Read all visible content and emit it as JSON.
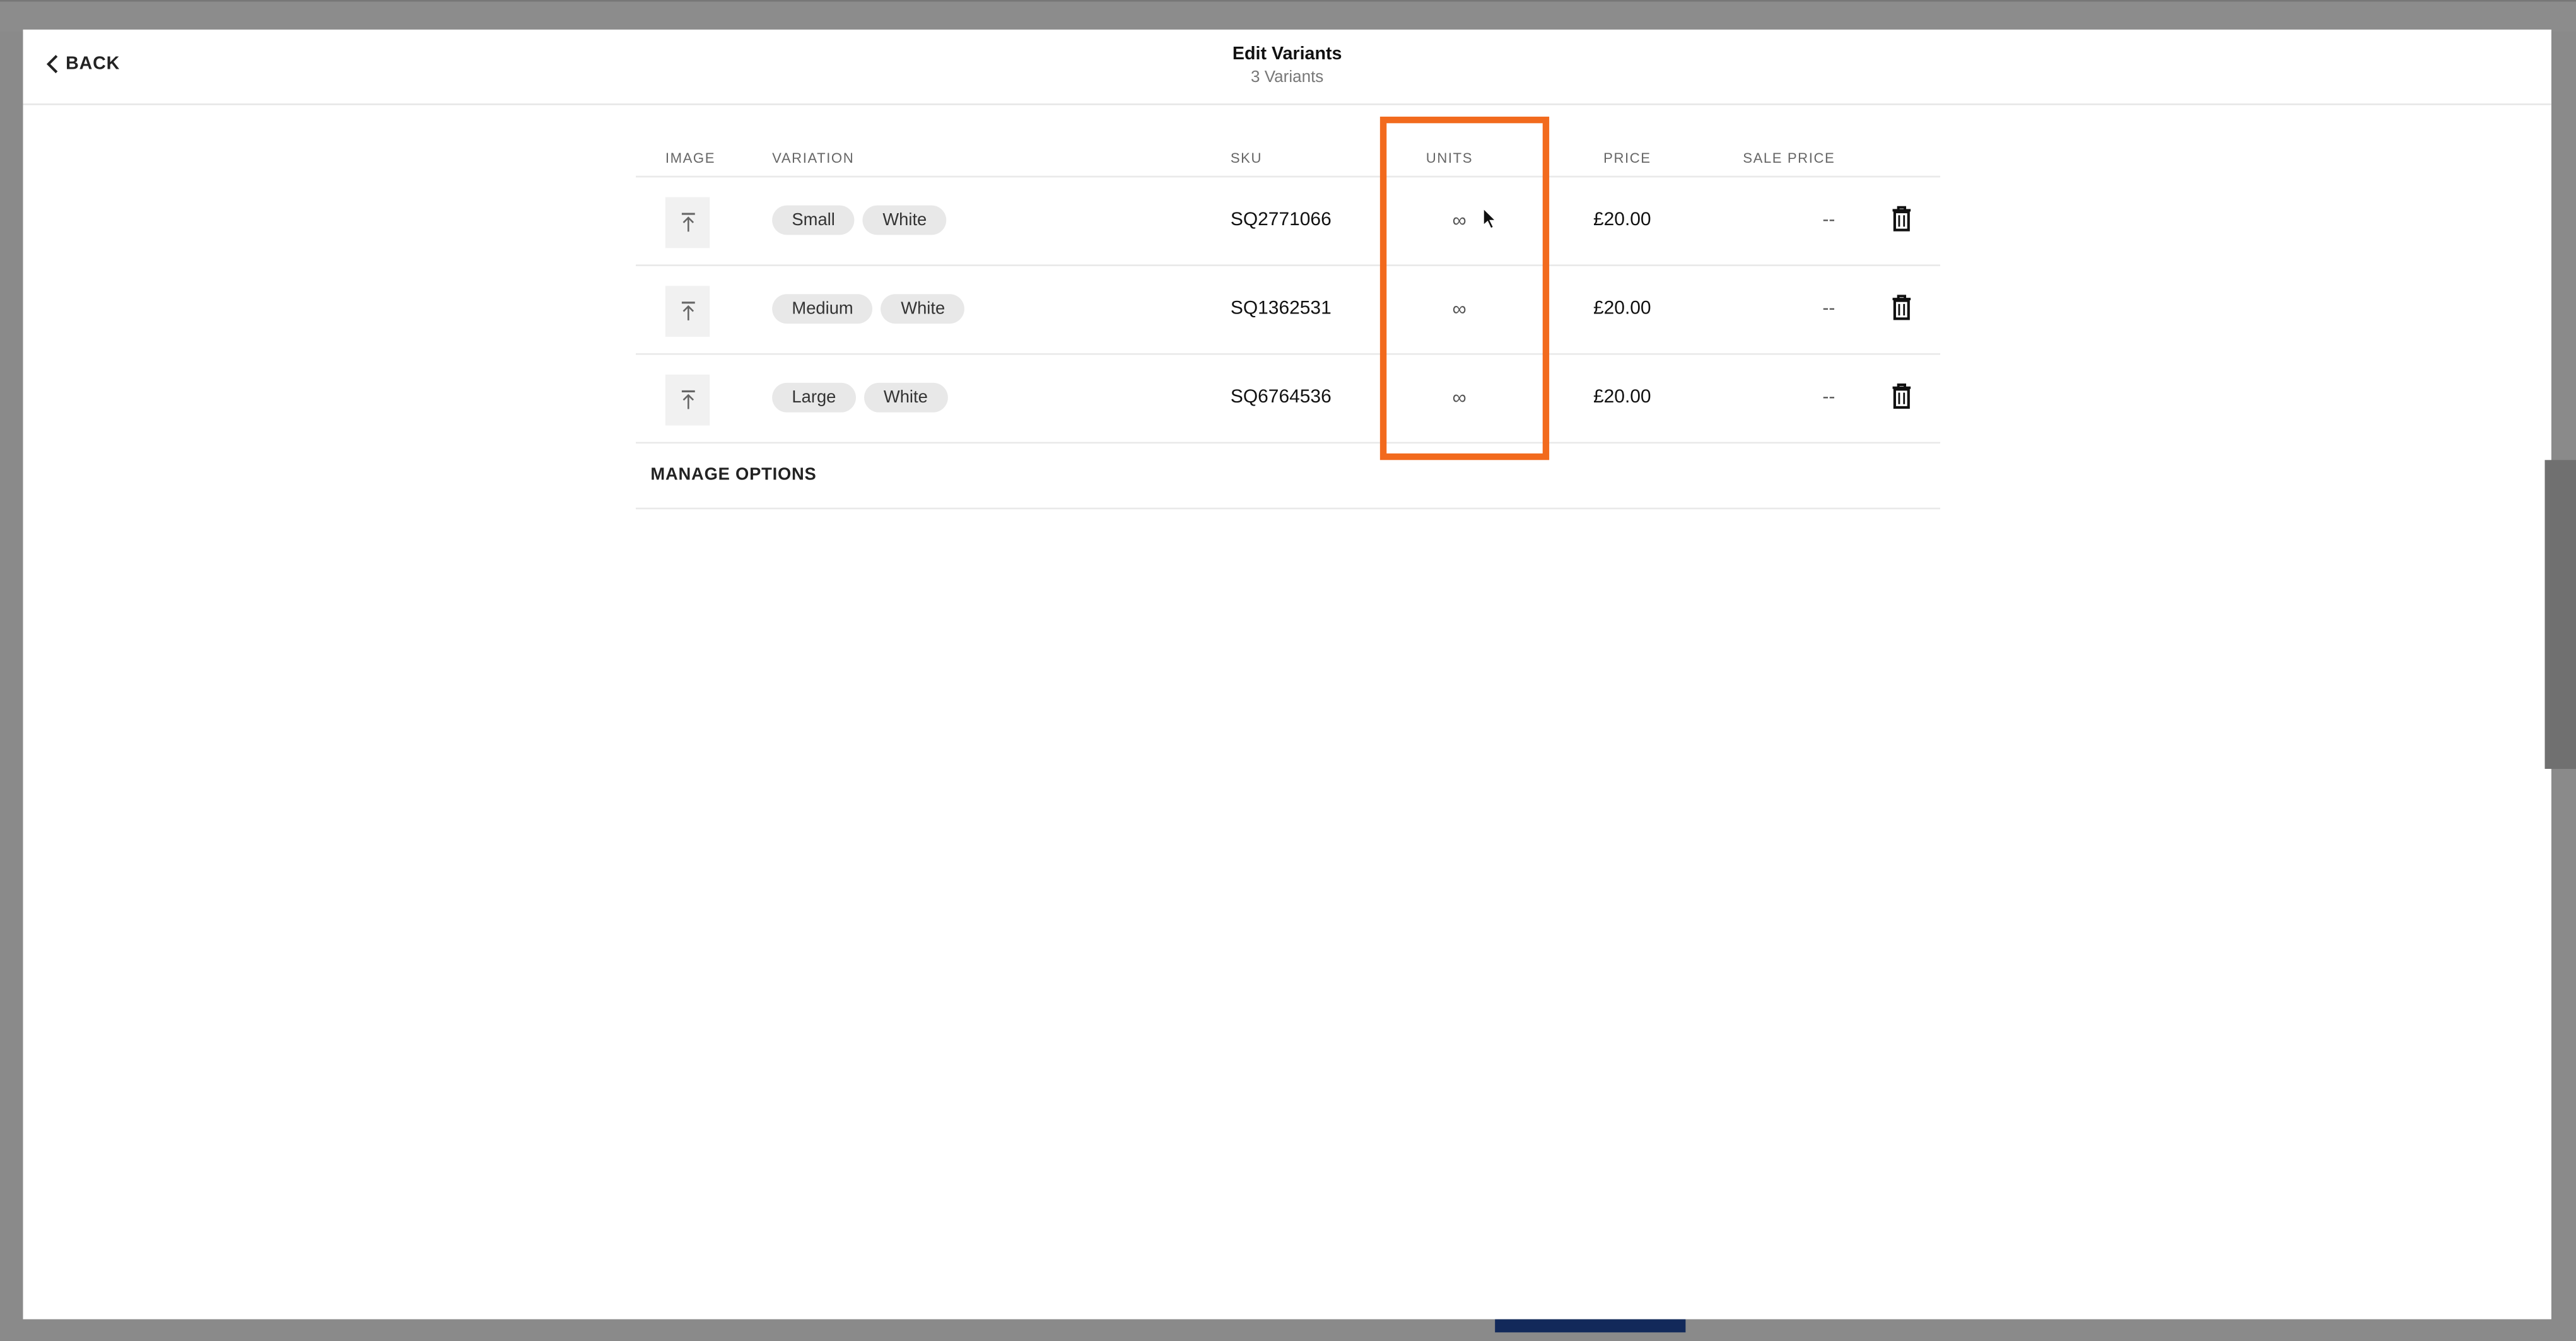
{
  "header": {
    "back_label": "BACK",
    "title": "Edit Variants",
    "subtitle": "3 Variants"
  },
  "table": {
    "columns": {
      "image": "IMAGE",
      "variation": "VARIATION",
      "sku": "SKU",
      "units": "UNITS",
      "price": "PRICE",
      "sale_price": "SALE PRICE"
    },
    "rows": [
      {
        "options": [
          "Small",
          "White"
        ],
        "sku": "SQ2771066",
        "units": "∞",
        "price": "£20.00",
        "sale_price": "--"
      },
      {
        "options": [
          "Medium",
          "White"
        ],
        "sku": "SQ1362531",
        "units": "∞",
        "price": "£20.00",
        "sale_price": "--"
      },
      {
        "options": [
          "Large",
          "White"
        ],
        "sku": "SQ6764536",
        "units": "∞",
        "price": "£20.00",
        "sale_price": "--"
      }
    ],
    "manage_options_label": "MANAGE OPTIONS"
  },
  "icons": {
    "back": "chevron-left-icon",
    "image_upload": "upload-icon",
    "delete": "trash-icon"
  },
  "colors": {
    "highlight": "#f26a1d",
    "overlay": "#8a8a8a",
    "bottom_button": "#12295a"
  }
}
